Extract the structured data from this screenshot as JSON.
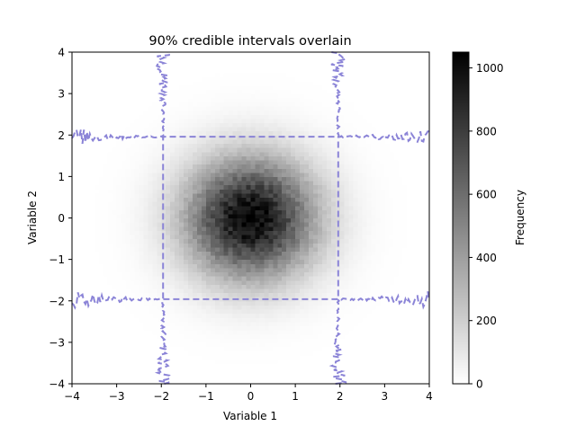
{
  "chart_data": {
    "type": "heatmap",
    "title": "90% credible intervals overlain",
    "xlabel": "Variable 1",
    "ylabel": "Variable 2",
    "xlim": [
      -4,
      4
    ],
    "ylim": [
      -4,
      4
    ],
    "xticks": [
      -4,
      -3,
      -2,
      -1,
      0,
      1,
      2,
      3,
      4
    ],
    "yticks": [
      -4,
      -3,
      -2,
      -1,
      0,
      1,
      2,
      3,
      4
    ],
    "xtick_labels": [
      "−4",
      "−3",
      "−2",
      "−1",
      "0",
      "1",
      "2",
      "3",
      "4"
    ],
    "ytick_labels": [
      "−4",
      "−3",
      "−2",
      "−1",
      "0",
      "1",
      "2",
      "3",
      "4"
    ],
    "grid": false,
    "density": {
      "distribution": "bivariate normal",
      "mean": [
        0,
        0
      ],
      "std": [
        1,
        1
      ],
      "peak_frequency": 1030,
      "bins_per_axis": 80
    },
    "colorbar": {
      "label": "Frequency",
      "colormap": "gray_r",
      "range": [
        0,
        1050
      ],
      "ticks": [
        0,
        200,
        400,
        600,
        800,
        1000
      ],
      "tick_labels": [
        "0",
        "200",
        "400",
        "600",
        "800",
        "1000"
      ]
    },
    "credible_interval_lines": {
      "level": "90%",
      "color": "#8b84d7",
      "style": "dashed",
      "x_bounds": [
        -1.96,
        1.96
      ],
      "y_bounds": [
        -1.96,
        1.96
      ]
    }
  }
}
